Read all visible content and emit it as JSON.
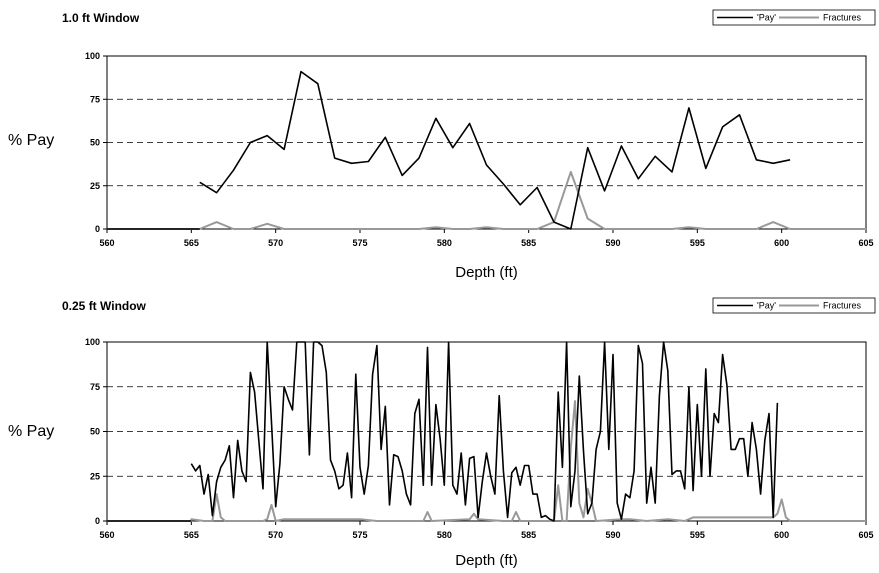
{
  "chart_data": [
    {
      "type": "line",
      "title": "1.0 ft Window",
      "xlabel": "Depth (ft)",
      "ylabel": "% Pay",
      "xlim": [
        560,
        605
      ],
      "ylim": [
        0,
        100
      ],
      "xticks": [
        "560",
        "565",
        "570",
        "575",
        "580",
        "585",
        "590",
        "595",
        "600",
        "605"
      ],
      "yticks": [
        "0",
        "25",
        "50",
        "75",
        "100"
      ],
      "grid": "horizontal-dashed",
      "legend_position": "top-right",
      "series": [
        {
          "name": "'Pay'",
          "color": "#000000",
          "x": [
            565.5,
            566.5,
            567.5,
            568.5,
            569.5,
            570.5,
            571.5,
            572.5,
            573.5,
            574.5,
            575.5,
            576.5,
            577.5,
            578.5,
            579.5,
            580.5,
            581.5,
            582.5,
            583.5,
            584.5,
            585.5,
            586.5,
            587.5,
            588.5,
            589.5,
            590.5,
            591.5,
            592.5,
            593.5,
            594.5,
            595.5,
            596.5,
            597.5,
            598.5,
            599.5,
            600.5
          ],
          "y": [
            27,
            21,
            34,
            50,
            54,
            46,
            91,
            84,
            41,
            38,
            39,
            53,
            31,
            41,
            64,
            47,
            61,
            37,
            26,
            14,
            24,
            4,
            0,
            47,
            22,
            48,
            29,
            42,
            33,
            70,
            35,
            59,
            66,
            40,
            38,
            40
          ]
        },
        {
          "name": "Fractures",
          "color": "#999999",
          "x": [
            565.5,
            566.5,
            567.5,
            568.5,
            569.5,
            570.5,
            571.5,
            572.5,
            573.5,
            574.5,
            575.5,
            576.5,
            577.5,
            578.5,
            579.5,
            580.5,
            581.5,
            582.5,
            583.5,
            584.5,
            585.5,
            586.5,
            587.5,
            588.5,
            589.5,
            590.5,
            591.5,
            592.5,
            593.5,
            594.5,
            595.5,
            596.5,
            597.5,
            598.5,
            599.5,
            600.5
          ],
          "y": [
            0,
            4,
            0,
            0,
            3,
            0,
            0,
            0,
            0,
            0,
            0,
            0,
            0,
            0,
            1,
            0,
            0,
            1,
            0,
            0,
            0,
            4,
            33,
            6,
            0,
            0,
            0,
            0,
            0,
            1,
            0,
            0,
            0,
            0,
            4,
            0
          ]
        }
      ]
    },
    {
      "type": "line",
      "title": "0.25 ft Window",
      "xlabel": "Depth (ft)",
      "ylabel": "% Pay",
      "xlim": [
        560,
        605
      ],
      "ylim": [
        0,
        100
      ],
      "xticks": [
        "560",
        "565",
        "570",
        "575",
        "580",
        "585",
        "590",
        "595",
        "600",
        "605"
      ],
      "yticks": [
        "0",
        "25",
        "50",
        "75",
        "100"
      ],
      "grid": "horizontal-dashed",
      "legend_position": "top-right",
      "series": [
        {
          "name": "'Pay'",
          "color": "#000000",
          "x_start": 565.0,
          "x_step": 0.25,
          "y": [
            32,
            28,
            31,
            15,
            26,
            3,
            22,
            30,
            34,
            42,
            13,
            45,
            28,
            22,
            83,
            72,
            45,
            18,
            100,
            55,
            8,
            32,
            75,
            68,
            62,
            100,
            100,
            100,
            37,
            100,
            100,
            98,
            83,
            34,
            28,
            18,
            20,
            38,
            13,
            82,
            30,
            15,
            31,
            82,
            98,
            40,
            64,
            9,
            37,
            36,
            28,
            15,
            9,
            60,
            68,
            20,
            97,
            20,
            65,
            46,
            20,
            100,
            20,
            15,
            38,
            9,
            35,
            36,
            2,
            22,
            38,
            25,
            15,
            70,
            28,
            2,
            27,
            30,
            20,
            31,
            31,
            15,
            15,
            2,
            3,
            1,
            0,
            72,
            30,
            100,
            8,
            28,
            81,
            39,
            4,
            10,
            40,
            50,
            100,
            40,
            93,
            10,
            1,
            15,
            13,
            28,
            98,
            88,
            10,
            30,
            10,
            70,
            100,
            84,
            26,
            28,
            28,
            18,
            75,
            17,
            65,
            25,
            85,
            25,
            60,
            55,
            93,
            76,
            40,
            40,
            46,
            46,
            25,
            55,
            40,
            15,
            45,
            60,
            2,
            66
          ]
        },
        {
          "name": "Fractures",
          "color": "#999999",
          "x": [
            565.0,
            565.75,
            566.25,
            566.5,
            566.75,
            567.0,
            569.25,
            569.5,
            569.75,
            570.0,
            570.5,
            575.0,
            576.0,
            578.75,
            579.0,
            579.25,
            581.5,
            581.75,
            582.0,
            583.5,
            584.0,
            584.25,
            584.5,
            586.5,
            586.75,
            587.0,
            587.25,
            587.5,
            587.75,
            588.0,
            588.25,
            588.5,
            588.75,
            589.0,
            590.5,
            591.0,
            592.0,
            593.25,
            594.25,
            594.75,
            599.5,
            599.75,
            600.0,
            600.25,
            600.5
          ],
          "y": [
            1,
            0,
            0,
            15,
            2,
            0,
            0,
            1,
            9,
            0,
            1,
            1,
            0,
            0,
            5,
            0,
            1,
            4,
            1,
            0,
            0,
            5,
            0,
            0,
            20,
            0,
            0,
            41,
            67,
            10,
            2,
            18,
            10,
            0,
            1,
            1,
            0,
            1,
            0,
            2,
            2,
            4,
            12,
            2,
            0
          ]
        }
      ]
    }
  ]
}
